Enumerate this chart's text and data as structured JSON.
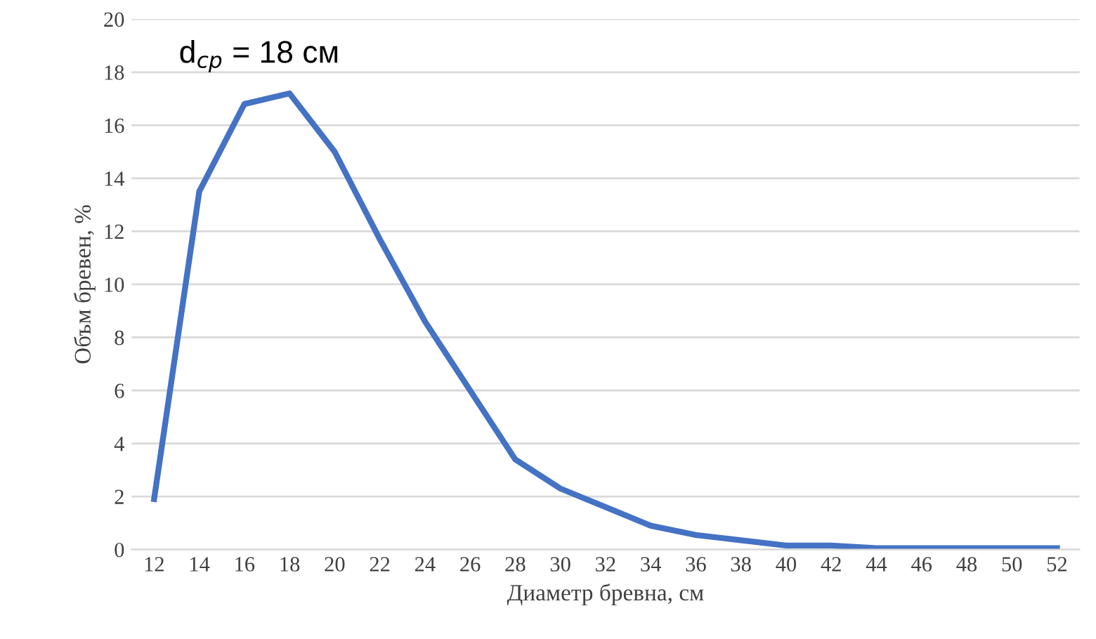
{
  "chart_data": {
    "type": "line",
    "xlabel": "Диаметр бревна, см",
    "ylabel": "Объм бревен, %",
    "categories": [
      "12",
      "14",
      "16",
      "18",
      "20",
      "22",
      "24",
      "26",
      "28",
      "30",
      "32",
      "34",
      "36",
      "38",
      "40",
      "42",
      "44",
      "46",
      "48",
      "50",
      "52"
    ],
    "series": [
      {
        "color": "#4472c4",
        "values": [
          1.9,
          13.5,
          16.8,
          17.2,
          15.0,
          11.7,
          8.6,
          6.0,
          3.4,
          2.3,
          1.6,
          0.9,
          0.55,
          0.35,
          0.15,
          0.15,
          0.05,
          0.05,
          0.05,
          0.05,
          0.05
        ]
      }
    ],
    "ylim": [
      0,
      20
    ],
    "yticks": [
      0,
      2,
      4,
      6,
      8,
      10,
      12,
      14,
      16,
      18,
      20
    ],
    "grid": "y",
    "marker": "none",
    "line_style": "solid",
    "annotations": [
      "d$_{ср}$ = 18 см"
    ]
  }
}
